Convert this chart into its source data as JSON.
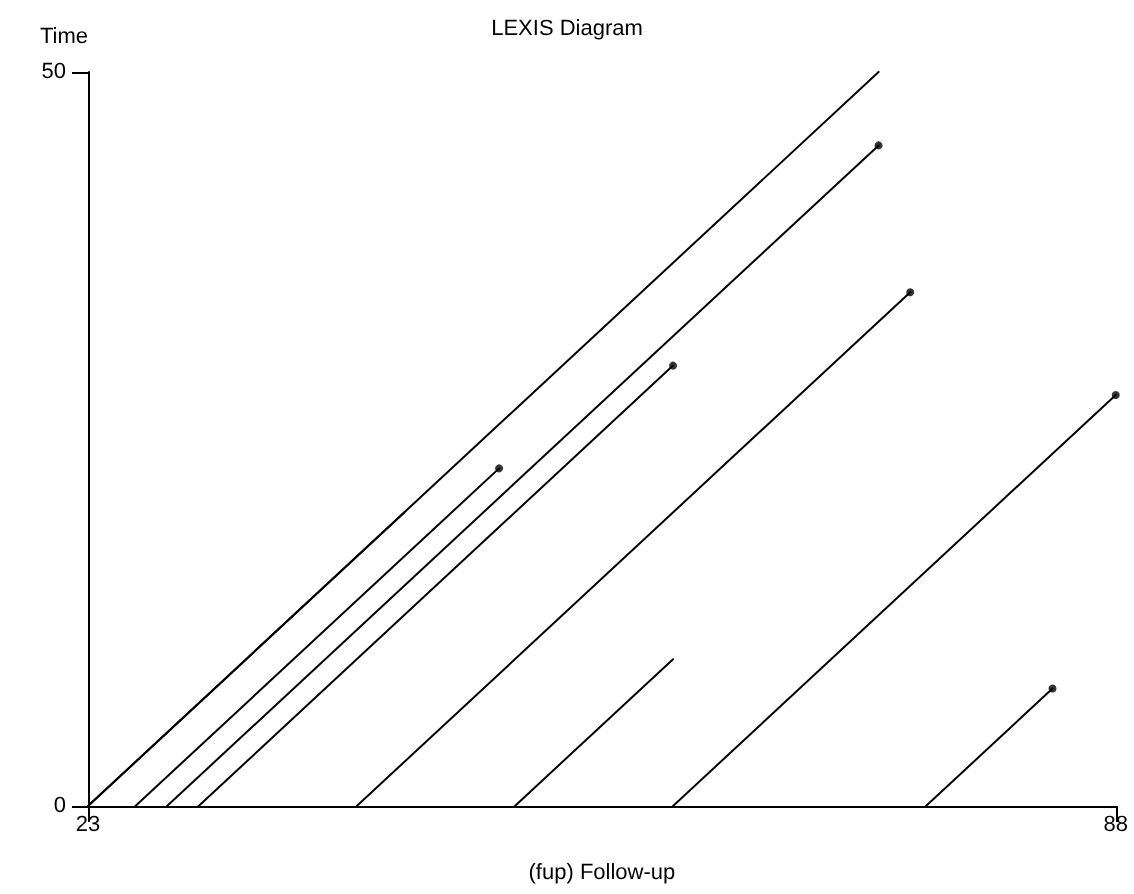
{
  "chart_data": {
    "type": "line",
    "title": "LEXIS Diagram",
    "xlabel": "(fup) Follow-up",
    "ylabel": "Time",
    "xlim": [
      23,
      88
    ],
    "ylim": [
      0,
      50
    ],
    "xticks": [
      23,
      88
    ],
    "yticks": [
      0,
      50
    ],
    "grid": false,
    "marker": "none",
    "line_style": "solid",
    "series": [
      {
        "color": "#000000",
        "x": [
          23,
          73
        ],
        "values": [
          0,
          50
        ]
      },
      {
        "color": "#000000",
        "x": [
          23,
          43
        ],
        "values": [
          0,
          20
        ]
      },
      {
        "color": "#000000",
        "x": [
          26,
          49
        ],
        "values": [
          0,
          23
        ]
      },
      {
        "color": "#000000",
        "x": [
          28,
          73
        ],
        "values": [
          0,
          45
        ]
      },
      {
        "color": "#000000",
        "x": [
          30,
          60
        ],
        "values": [
          0,
          30
        ]
      },
      {
        "color": "#000000",
        "x": [
          40,
          75
        ],
        "values": [
          0,
          35
        ]
      },
      {
        "color": "#000000",
        "x": [
          50,
          60
        ],
        "values": [
          0,
          10
        ]
      },
      {
        "color": "#000000",
        "x": [
          60,
          88
        ],
        "values": [
          0,
          28
        ]
      },
      {
        "color": "#000000",
        "x": [
          76,
          84
        ],
        "values": [
          0,
          8
        ]
      },
      {
        "type": "scatter",
        "marker": "circle",
        "color": "#000000",
        "x": [
          49,
          73,
          60,
          75,
          88,
          84
        ],
        "values": [
          23,
          45,
          30,
          35,
          28,
          8
        ]
      }
    ]
  }
}
